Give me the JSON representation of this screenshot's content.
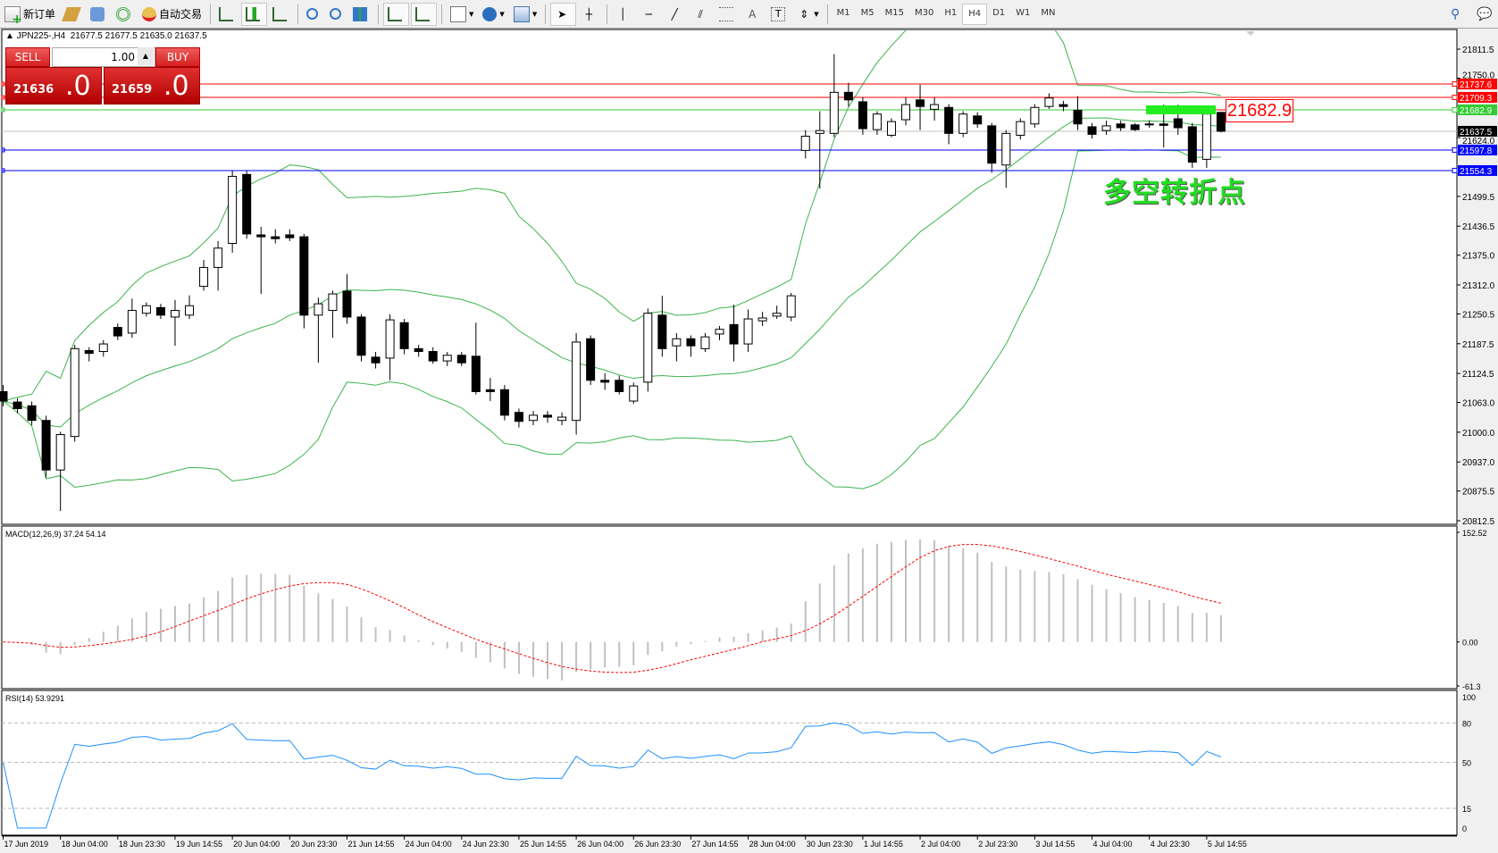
{
  "toolbar": {
    "new_order": "新订单",
    "auto_trading": "自动交易",
    "icons": [
      "new-order-icon",
      "market-watch-icon",
      "data-window-icon",
      "signals-icon",
      "auto-trading-icon",
      "bar-chart-icon",
      "candlestick-icon",
      "line-chart-icon",
      "zoom-in-icon",
      "zoom-out-icon",
      "tile-windows-icon",
      "autoscroll-icon",
      "chart-shift-icon",
      "indicators-icon",
      "periods-icon",
      "templates-icon",
      "cursor-icon",
      "crosshair-icon",
      "vertical-line-icon",
      "horizontal-line-icon",
      "trendline-icon",
      "equidistant-channel-icon",
      "fibonacci-icon",
      "text-icon",
      "text-label-icon",
      "arrows-icon",
      "search-icon",
      "chat-icon"
    ],
    "timeframes": [
      "M1",
      "M5",
      "M15",
      "M30",
      "H1",
      "H4",
      "D1",
      "W1",
      "MN"
    ],
    "active_timeframe": "H4"
  },
  "header": {
    "symbol": "JPN225-,H4",
    "ohlc": "21677.5 21677.5 21635.0 21637.5"
  },
  "trade_panel": {
    "sell": "SELL",
    "buy": "BUY",
    "lot": "1.00",
    "sell_price_small": "21636",
    "sell_price_big": ".0",
    "buy_price_small": "21659",
    "buy_price_big": ".0"
  },
  "annotation": {
    "text": "多空转折点",
    "box_label": "21682.9",
    "color": "#22dd22"
  },
  "chart_data": {
    "type": "candlestick",
    "symbol": "JPN225-",
    "timeframe": "H4",
    "ylim": [
      20812.5,
      21811.5
    ],
    "y_ticks": [
      "21811.5",
      "21750.0",
      "21624.0",
      "21499.5",
      "21436.5",
      "21375.0",
      "21312.0",
      "21250.5",
      "21187.5",
      "21124.5",
      "21063.0",
      "21000.0",
      "20937.0",
      "20875.5",
      "20812.5"
    ],
    "x_ticks": [
      "17 Jun 2019",
      "18 Jun 04:00",
      "18 Jun 23:30",
      "19 Jun 14:55",
      "20 Jun 04:00",
      "20 Jun 23:30",
      "21 Jun 14:55",
      "24 Jun 04:00",
      "24 Jun 23:30",
      "25 Jun 14:55",
      "26 Jun 04:00",
      "26 Jun 23:30",
      "27 Jun 14:55",
      "28 Jun 04:00",
      "30 Jun 23:30",
      "1 Jul 14:55",
      "2 Jul 04:00",
      "2 Jul 23:30",
      "3 Jul 14:55",
      "4 Jul 04:00",
      "4 Jul 23:30",
      "5 Jul 14:55"
    ],
    "candles_ohlc": [
      [
        21086,
        21100,
        21055,
        21066
      ],
      [
        21064,
        21072,
        21040,
        21050
      ],
      [
        21056,
        21065,
        21015,
        21025
      ],
      [
        21025,
        21035,
        20904,
        20920
      ],
      [
        20920,
        21001,
        20833,
        20995
      ],
      [
        20991,
        21185,
        20980,
        21177
      ],
      [
        21173,
        21180,
        21150,
        21167
      ],
      [
        21171,
        21195,
        21160,
        21187
      ],
      [
        21222,
        21230,
        21195,
        21204
      ],
      [
        21210,
        21283,
        21200,
        21258
      ],
      [
        21252,
        21275,
        21245,
        21268
      ],
      [
        21264,
        21272,
        21240,
        21248
      ],
      [
        21244,
        21280,
        21183,
        21258
      ],
      [
        21248,
        21290,
        21240,
        21268
      ],
      [
        21309,
        21365,
        21300,
        21349
      ],
      [
        21349,
        21405,
        21300,
        21390
      ],
      [
        21400,
        21555,
        21380,
        21542
      ],
      [
        21546,
        21555,
        21410,
        21420
      ],
      [
        21418,
        21435,
        21293,
        21414
      ],
      [
        21414,
        21430,
        21400,
        21410
      ],
      [
        21418,
        21430,
        21405,
        21412
      ],
      [
        21414,
        21420,
        21220,
        21248
      ],
      [
        21248,
        21285,
        21147,
        21272
      ],
      [
        21258,
        21300,
        21200,
        21293
      ],
      [
        21299,
        21335,
        21230,
        21244
      ],
      [
        21244,
        21250,
        21150,
        21163
      ],
      [
        21159,
        21170,
        21135,
        21147
      ],
      [
        21157,
        21250,
        21110,
        21238
      ],
      [
        21232,
        21240,
        21165,
        21177
      ],
      [
        21177,
        21185,
        21160,
        21171
      ],
      [
        21171,
        21180,
        21145,
        21151
      ],
      [
        21151,
        21170,
        21140,
        21163
      ],
      [
        21163,
        21170,
        21140,
        21147
      ],
      [
        21161,
        21232,
        21080,
        21086
      ],
      [
        21090,
        21115,
        21066,
        21086
      ],
      [
        21090,
        21100,
        21025,
        21036
      ],
      [
        21042,
        21050,
        21010,
        21023
      ],
      [
        21025,
        21045,
        21015,
        21036
      ],
      [
        21036,
        21045,
        21020,
        21032
      ],
      [
        21025,
        21042,
        21015,
        21032
      ],
      [
        21025,
        21210,
        20995,
        21191
      ],
      [
        21198,
        21205,
        21100,
        21110
      ],
      [
        21110,
        21125,
        21090,
        21106
      ],
      [
        21110,
        21120,
        21080,
        21086
      ],
      [
        21066,
        21105,
        21060,
        21098
      ],
      [
        21106,
        21262,
        21086,
        21252
      ],
      [
        21248,
        21289,
        21160,
        21177
      ],
      [
        21183,
        21210,
        21150,
        21198
      ],
      [
        21198,
        21205,
        21160,
        21183
      ],
      [
        21177,
        21210,
        21170,
        21202
      ],
      [
        21208,
        21225,
        21195,
        21218
      ],
      [
        21228,
        21270,
        21150,
        21187
      ],
      [
        21187,
        21260,
        21170,
        21240
      ],
      [
        21236,
        21255,
        21225,
        21242
      ],
      [
        21246,
        21268,
        21240,
        21252
      ],
      [
        21244,
        21295,
        21235,
        21289
      ],
      [
        21597,
        21640,
        21580,
        21627
      ],
      [
        21633,
        21680,
        21516,
        21639
      ],
      [
        21633,
        21801,
        21625,
        21720
      ],
      [
        21720,
        21740,
        21690,
        21704
      ],
      [
        21700,
        21710,
        21630,
        21643
      ],
      [
        21641,
        21680,
        21630,
        21674
      ],
      [
        21629,
        21665,
        21625,
        21658
      ],
      [
        21662,
        21710,
        21650,
        21694
      ],
      [
        21704,
        21736,
        21640,
        21690
      ],
      [
        21684,
        21710,
        21660,
        21694
      ],
      [
        21688,
        21695,
        21610,
        21633
      ],
      [
        21633,
        21680,
        21625,
        21674
      ],
      [
        21670,
        21678,
        21645,
        21653
      ],
      [
        21649,
        21655,
        21550,
        21570
      ],
      [
        21566,
        21640,
        21518,
        21633
      ],
      [
        21629,
        21665,
        21620,
        21658
      ],
      [
        21653,
        21695,
        21645,
        21688
      ],
      [
        21690,
        21718,
        21685,
        21708
      ],
      [
        21694,
        21702,
        21680,
        21690
      ],
      [
        21682,
        21712,
        21640,
        21653
      ],
      [
        21647,
        21655,
        21622,
        21631
      ],
      [
        21639,
        21660,
        21630,
        21649
      ],
      [
        21653,
        21660,
        21638,
        21645
      ],
      [
        21651,
        21655,
        21638,
        21641
      ],
      [
        21651,
        21660,
        21645,
        21653
      ],
      [
        21653,
        21694,
        21603,
        21650
      ],
      [
        21664,
        21694,
        21630,
        21645
      ],
      [
        21647,
        21655,
        21560,
        21572
      ],
      [
        21578,
        21680,
        21560,
        21674
      ],
      [
        21677.5,
        21677.5,
        21635.0,
        21637.5
      ]
    ],
    "indicators": {
      "bollinger": {
        "period": 20,
        "deviation": 2,
        "color": "#3cb44b"
      }
    },
    "horizontal_lines": [
      {
        "price": "21737.6",
        "color": "#ff0000"
      },
      {
        "price": "21709.3",
        "color": "#ff0000"
      },
      {
        "price": "21682.9",
        "color": "#33cc33"
      },
      {
        "price": "21637.5",
        "color": "#000000",
        "line_color": "#c0c0c0"
      },
      {
        "price": "21597.8",
        "color": "#0000ff"
      },
      {
        "price": "21554.3",
        "color": "#0000ff"
      }
    ],
    "macd": {
      "label": "MACD(12,26,9) 37.24 54.14",
      "ylim": [
        -61.3,
        152.52
      ],
      "y_ticks": [
        "152.52",
        "0.00",
        "-61.3"
      ],
      "histogram_color": "#c0c0c0",
      "signal_color": "#ff0000"
    },
    "rsi": {
      "label": "RSI(14) 53.9291",
      "ylim": [
        0,
        100
      ],
      "y_ticks": [
        "100",
        "80",
        "50",
        "15",
        "0"
      ],
      "levels": [
        80,
        50,
        15
      ],
      "color": "#1e90ff"
    }
  }
}
